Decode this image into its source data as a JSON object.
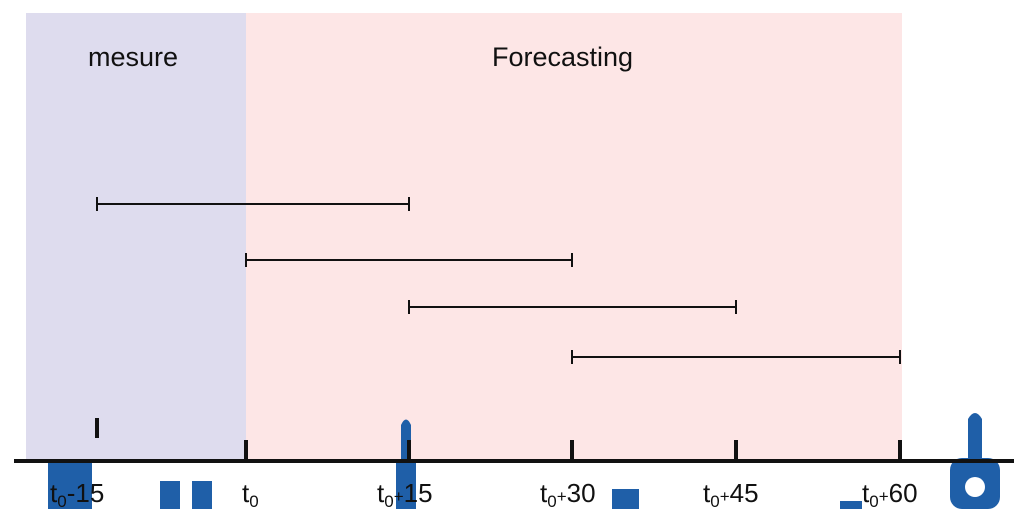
{
  "regions": {
    "measure": {
      "label": "mesure",
      "color": "#dedcee"
    },
    "forecast": {
      "label": "Forecasting",
      "color": "#fde6e6"
    }
  },
  "axis": {
    "ticks": [
      {
        "base": "t",
        "sub": "0",
        "op": "-",
        "num": "15"
      },
      {
        "base": "t",
        "sub": "0",
        "op": "",
        "num": ""
      },
      {
        "base": "t",
        "sub": "0",
        "op": "+",
        "num": "15"
      },
      {
        "base": "t",
        "sub": "0",
        "op": "+",
        "num": "30"
      },
      {
        "base": "t",
        "sub": "0",
        "op": "+",
        "num": "45"
      },
      {
        "base": "t",
        "sub": "0",
        "op": "+",
        "num": "60"
      }
    ]
  },
  "windows": [
    {
      "start": "t0-15",
      "end": "t0+15"
    },
    {
      "start": "t0",
      "end": "t0+30"
    },
    {
      "start": "t0+15",
      "end": "t0+45"
    },
    {
      "start": "t0+30",
      "end": "t0+60"
    }
  ],
  "colors": {
    "axis": "#111111",
    "decor": "#1f5fa8"
  }
}
